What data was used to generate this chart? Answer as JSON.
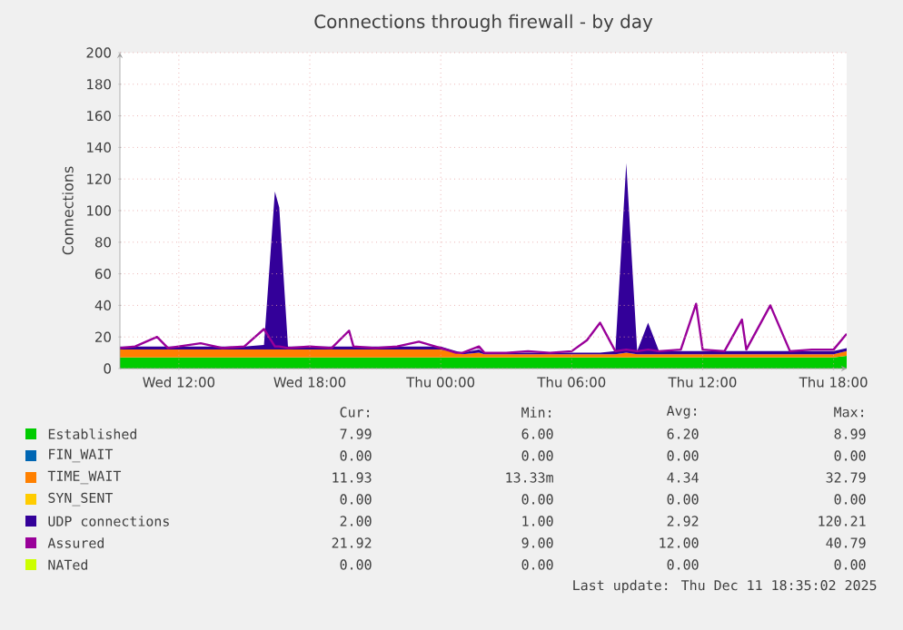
{
  "chart_data": {
    "type": "area",
    "stacked": true,
    "title": "Connections through firewall - by day",
    "ylabel": "Connections",
    "x": [
      "2025-12-10T09:18",
      "2025-12-10T10:00",
      "2025-12-10T11:00",
      "2025-12-10T11:30",
      "2025-12-10T12:00",
      "2025-12-10T13:00",
      "2025-12-10T14:00",
      "2025-12-10T15:00",
      "2025-12-10T15:54",
      "2025-12-10T16:24",
      "2025-12-10T16:36",
      "2025-12-10T17:00",
      "2025-12-10T18:00",
      "2025-12-10T19:00",
      "2025-12-10T19:48",
      "2025-12-10T20:00",
      "2025-12-10T21:00",
      "2025-12-10T22:00",
      "2025-12-10T23:00",
      "2025-12-11T00:00",
      "2025-12-11T00:42",
      "2025-12-11T01:00",
      "2025-12-11T01:45",
      "2025-12-11T02:00",
      "2025-12-11T03:00",
      "2025-12-11T04:00",
      "2025-12-11T05:00",
      "2025-12-11T06:00",
      "2025-12-11T06:42",
      "2025-12-11T07:18",
      "2025-12-11T08:00",
      "2025-12-11T08:30",
      "2025-12-11T09:00",
      "2025-12-11T09:30",
      "2025-12-11T10:00",
      "2025-12-11T11:00",
      "2025-12-11T11:42",
      "2025-12-11T12:00",
      "2025-12-11T13:00",
      "2025-12-11T13:48",
      "2025-12-11T14:00",
      "2025-12-11T15:06",
      "2025-12-11T16:00",
      "2025-12-11T17:00",
      "2025-12-11T18:00",
      "2025-12-11T18:36"
    ],
    "xlim": [
      "2025-12-10T09:18",
      "2025-12-11T18:36"
    ],
    "xticks": [
      {
        "value": "2025-12-10T12:00",
        "label": "Wed 12:00"
      },
      {
        "value": "2025-12-10T18:00",
        "label": "Wed 18:00"
      },
      {
        "value": "2025-12-11T00:00",
        "label": "Thu 00:00"
      },
      {
        "value": "2025-12-11T06:00",
        "label": "Thu 06:00"
      },
      {
        "value": "2025-12-11T12:00",
        "label": "Thu 12:00"
      },
      {
        "value": "2025-12-11T18:00",
        "label": "Thu 18:00"
      }
    ],
    "ylim": [
      0,
      200
    ],
    "yticks": [
      0,
      20,
      40,
      60,
      80,
      100,
      120,
      140,
      160,
      180,
      200
    ],
    "grid": true,
    "legend": "bottom",
    "series": [
      {
        "name": "Established",
        "color": "#00cc00",
        "values": [
          7,
          7,
          7,
          7,
          7,
          7,
          7,
          7,
          7,
          7,
          7,
          7,
          7,
          7,
          7,
          7,
          7,
          7,
          7,
          7,
          7,
          7,
          7,
          7,
          7,
          7,
          7,
          7,
          7,
          7,
          7,
          7,
          7,
          7,
          7,
          7,
          7,
          7,
          7,
          7,
          7,
          7,
          7,
          7,
          7,
          8
        ]
      },
      {
        "name": "FIN_WAIT",
        "color": "#0066b3",
        "values": [
          null,
          null,
          null,
          null,
          null,
          null,
          null,
          null,
          null,
          null,
          null,
          null,
          null,
          null,
          null,
          null,
          null,
          null,
          null,
          null,
          null,
          null,
          null,
          null,
          null,
          null,
          null,
          null,
          null,
          null,
          null,
          null,
          null,
          null,
          null,
          null,
          null,
          null,
          null,
          null,
          null,
          null,
          null,
          null,
          null,
          null
        ]
      },
      {
        "name": "TIME_WAIT",
        "color": "#ff8000",
        "values": [
          5,
          5,
          5,
          5,
          5,
          5,
          5,
          5,
          5,
          5,
          5,
          5,
          5,
          5,
          5,
          5,
          5,
          5,
          5,
          5,
          3,
          2,
          3,
          2,
          2,
          2,
          2,
          2,
          2,
          2,
          2,
          3,
          2,
          2,
          2,
          2,
          2,
          2,
          2,
          2,
          2,
          2,
          2,
          2,
          2,
          3
        ]
      },
      {
        "name": "SYN_SENT",
        "color": "#ffcc00",
        "values": [
          null,
          null,
          null,
          null,
          null,
          null,
          null,
          null,
          null,
          null,
          null,
          null,
          null,
          null,
          null,
          null,
          null,
          null,
          null,
          null,
          null,
          null,
          null,
          null,
          null,
          null,
          null,
          null,
          null,
          null,
          null,
          null,
          null,
          null,
          null,
          null,
          null,
          null,
          null,
          null,
          null,
          null,
          null,
          null,
          null,
          null
        ]
      },
      {
        "name": "UDP connections",
        "color": "#330099",
        "values": [
          2,
          2,
          2,
          2,
          2,
          2,
          2,
          2,
          3,
          100,
          90,
          2,
          2,
          2,
          2,
          2,
          2,
          2,
          2,
          2,
          1,
          1,
          2,
          1,
          1,
          1,
          1,
          1,
          1,
          1,
          2,
          120,
          2,
          20,
          2,
          2,
          2,
          2,
          2,
          2,
          2,
          2,
          2,
          2,
          2,
          2
        ]
      },
      {
        "name": "Assured",
        "color": "#990099",
        "type": "line",
        "values": [
          13,
          14,
          20,
          13,
          14,
          16,
          13,
          14,
          25,
          14,
          14,
          13,
          14,
          13,
          24,
          14,
          13,
          14,
          17,
          13,
          10,
          10,
          14,
          10,
          10,
          11,
          10,
          11,
          18,
          29,
          11,
          12,
          11,
          12,
          11,
          12,
          41,
          12,
          11,
          31,
          12,
          40,
          11,
          12,
          12,
          22
        ]
      },
      {
        "name": "NATed",
        "color": "#ccff00",
        "values": [
          null,
          null,
          null,
          null,
          null,
          null,
          null,
          null,
          null,
          null,
          null,
          null,
          null,
          null,
          null,
          null,
          null,
          null,
          null,
          null,
          null,
          null,
          null,
          null,
          null,
          null,
          null,
          null,
          null,
          null,
          null,
          null,
          null,
          null,
          null,
          null,
          null,
          null,
          null,
          null,
          null,
          null,
          null,
          null,
          null,
          null
        ]
      }
    ],
    "annotations": [
      "Cur:",
      "Min:",
      "Avg:",
      "Max:",
      "7.99",
      "6.00",
      "6.20",
      "8.99",
      "0.00",
      "0.00",
      "0.00",
      "0.00",
      "11.93",
      "13.33m",
      "4.34",
      "32.79",
      "0.00",
      "0.00",
      "0.00",
      "0.00",
      "2.00",
      "1.00",
      "2.92",
      "120.21",
      "21.92",
      "9.00",
      "12.00",
      "40.79",
      "0.00",
      "0.00",
      "0.00",
      "0.00",
      "Last update: Thu Dec 11 18:35:02 2025"
    ]
  }
}
